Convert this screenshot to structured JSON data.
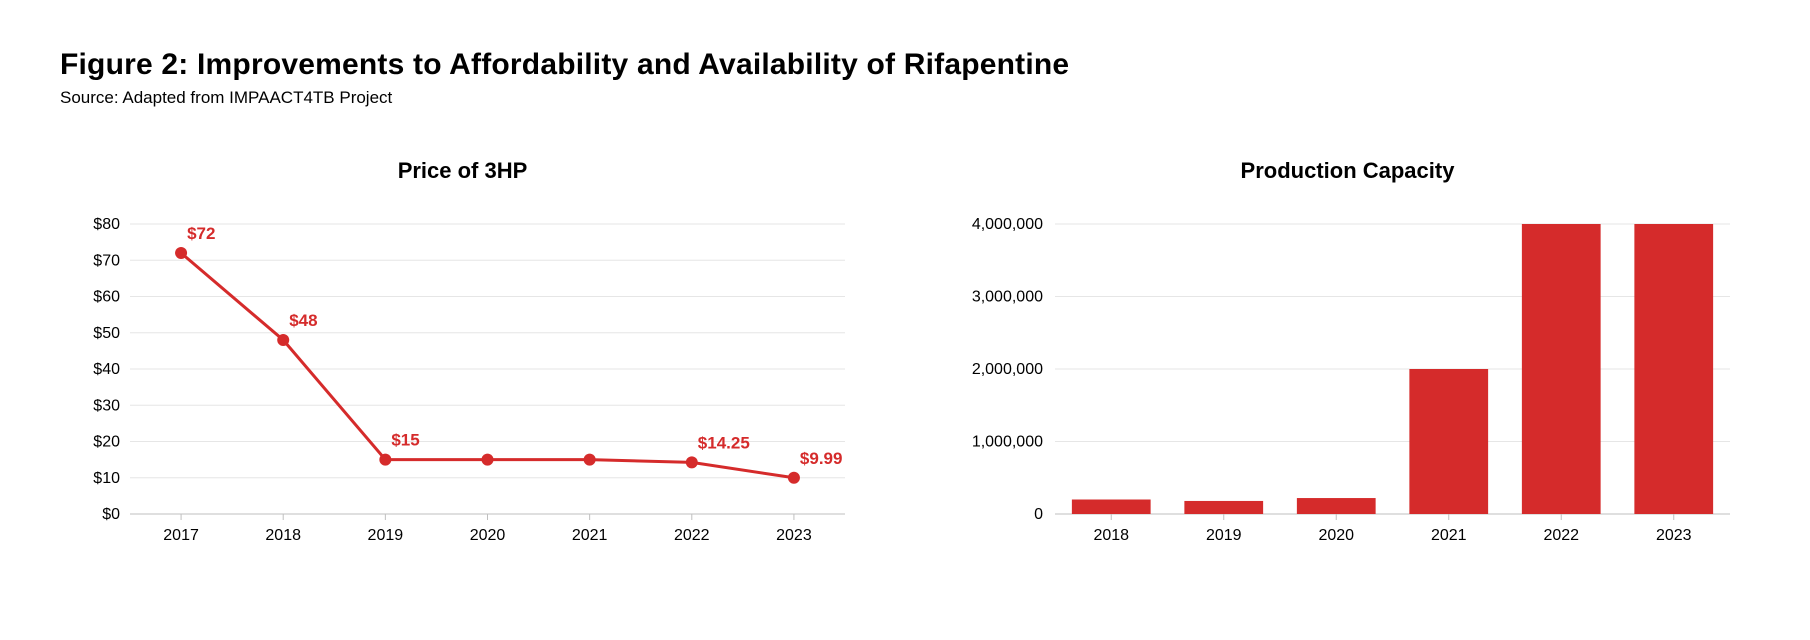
{
  "title": "Figure 2: Improvements to Affordability and Availability of Rifapentine",
  "source": "Source: Adapted from IMPAACT4TB Project",
  "colors": {
    "background": "#ffffff",
    "text": "#000000",
    "series": "#d52b2b",
    "grid": "#e6e6e6",
    "axis": "#bfbfbf"
  },
  "price_chart": {
    "type": "line",
    "title": "Price of 3HP",
    "x_categories": [
      "2017",
      "2018",
      "2019",
      "2020",
      "2021",
      "2022",
      "2023"
    ],
    "y_values": [
      72,
      48,
      15,
      15,
      15,
      14.25,
      9.99
    ],
    "data_labels": {
      "0": "$72",
      "1": "$48",
      "2": "$15",
      "5": "$14.25",
      "6": "$9.99"
    },
    "y_ticks": [
      0,
      10,
      20,
      30,
      40,
      50,
      60,
      70,
      80
    ],
    "y_tick_labels": [
      "$0",
      "$10",
      "$20",
      "$30",
      "$40",
      "$50",
      "$60",
      "$70",
      "$80"
    ],
    "ylim": [
      0,
      80
    ],
    "marker_radius": 6,
    "line_width": 3,
    "grid_color": "#e6e6e6",
    "axis_color": "#bfbfbf",
    "series_color": "#d52b2b",
    "label_fontsize": 17,
    "tick_fontsize": 16,
    "title_fontsize": 22
  },
  "capacity_chart": {
    "type": "bar",
    "title": "Production Capacity",
    "x_categories": [
      "2018",
      "2019",
      "2020",
      "2021",
      "2022",
      "2023"
    ],
    "y_values": [
      200000,
      180000,
      220000,
      2000000,
      4000000,
      4000000
    ],
    "y_ticks": [
      0,
      1000000,
      2000000,
      3000000,
      4000000
    ],
    "y_tick_labels": [
      "0",
      "1,000,000",
      "2,000,000",
      "3,000,000",
      "4,000,000"
    ],
    "ylim": [
      0,
      4000000
    ],
    "bar_color": "#d52b2b",
    "bar_width_ratio": 0.7,
    "grid_color": "#e6e6e6",
    "axis_color": "#bfbfbf",
    "tick_fontsize": 16,
    "title_fontsize": 22
  }
}
